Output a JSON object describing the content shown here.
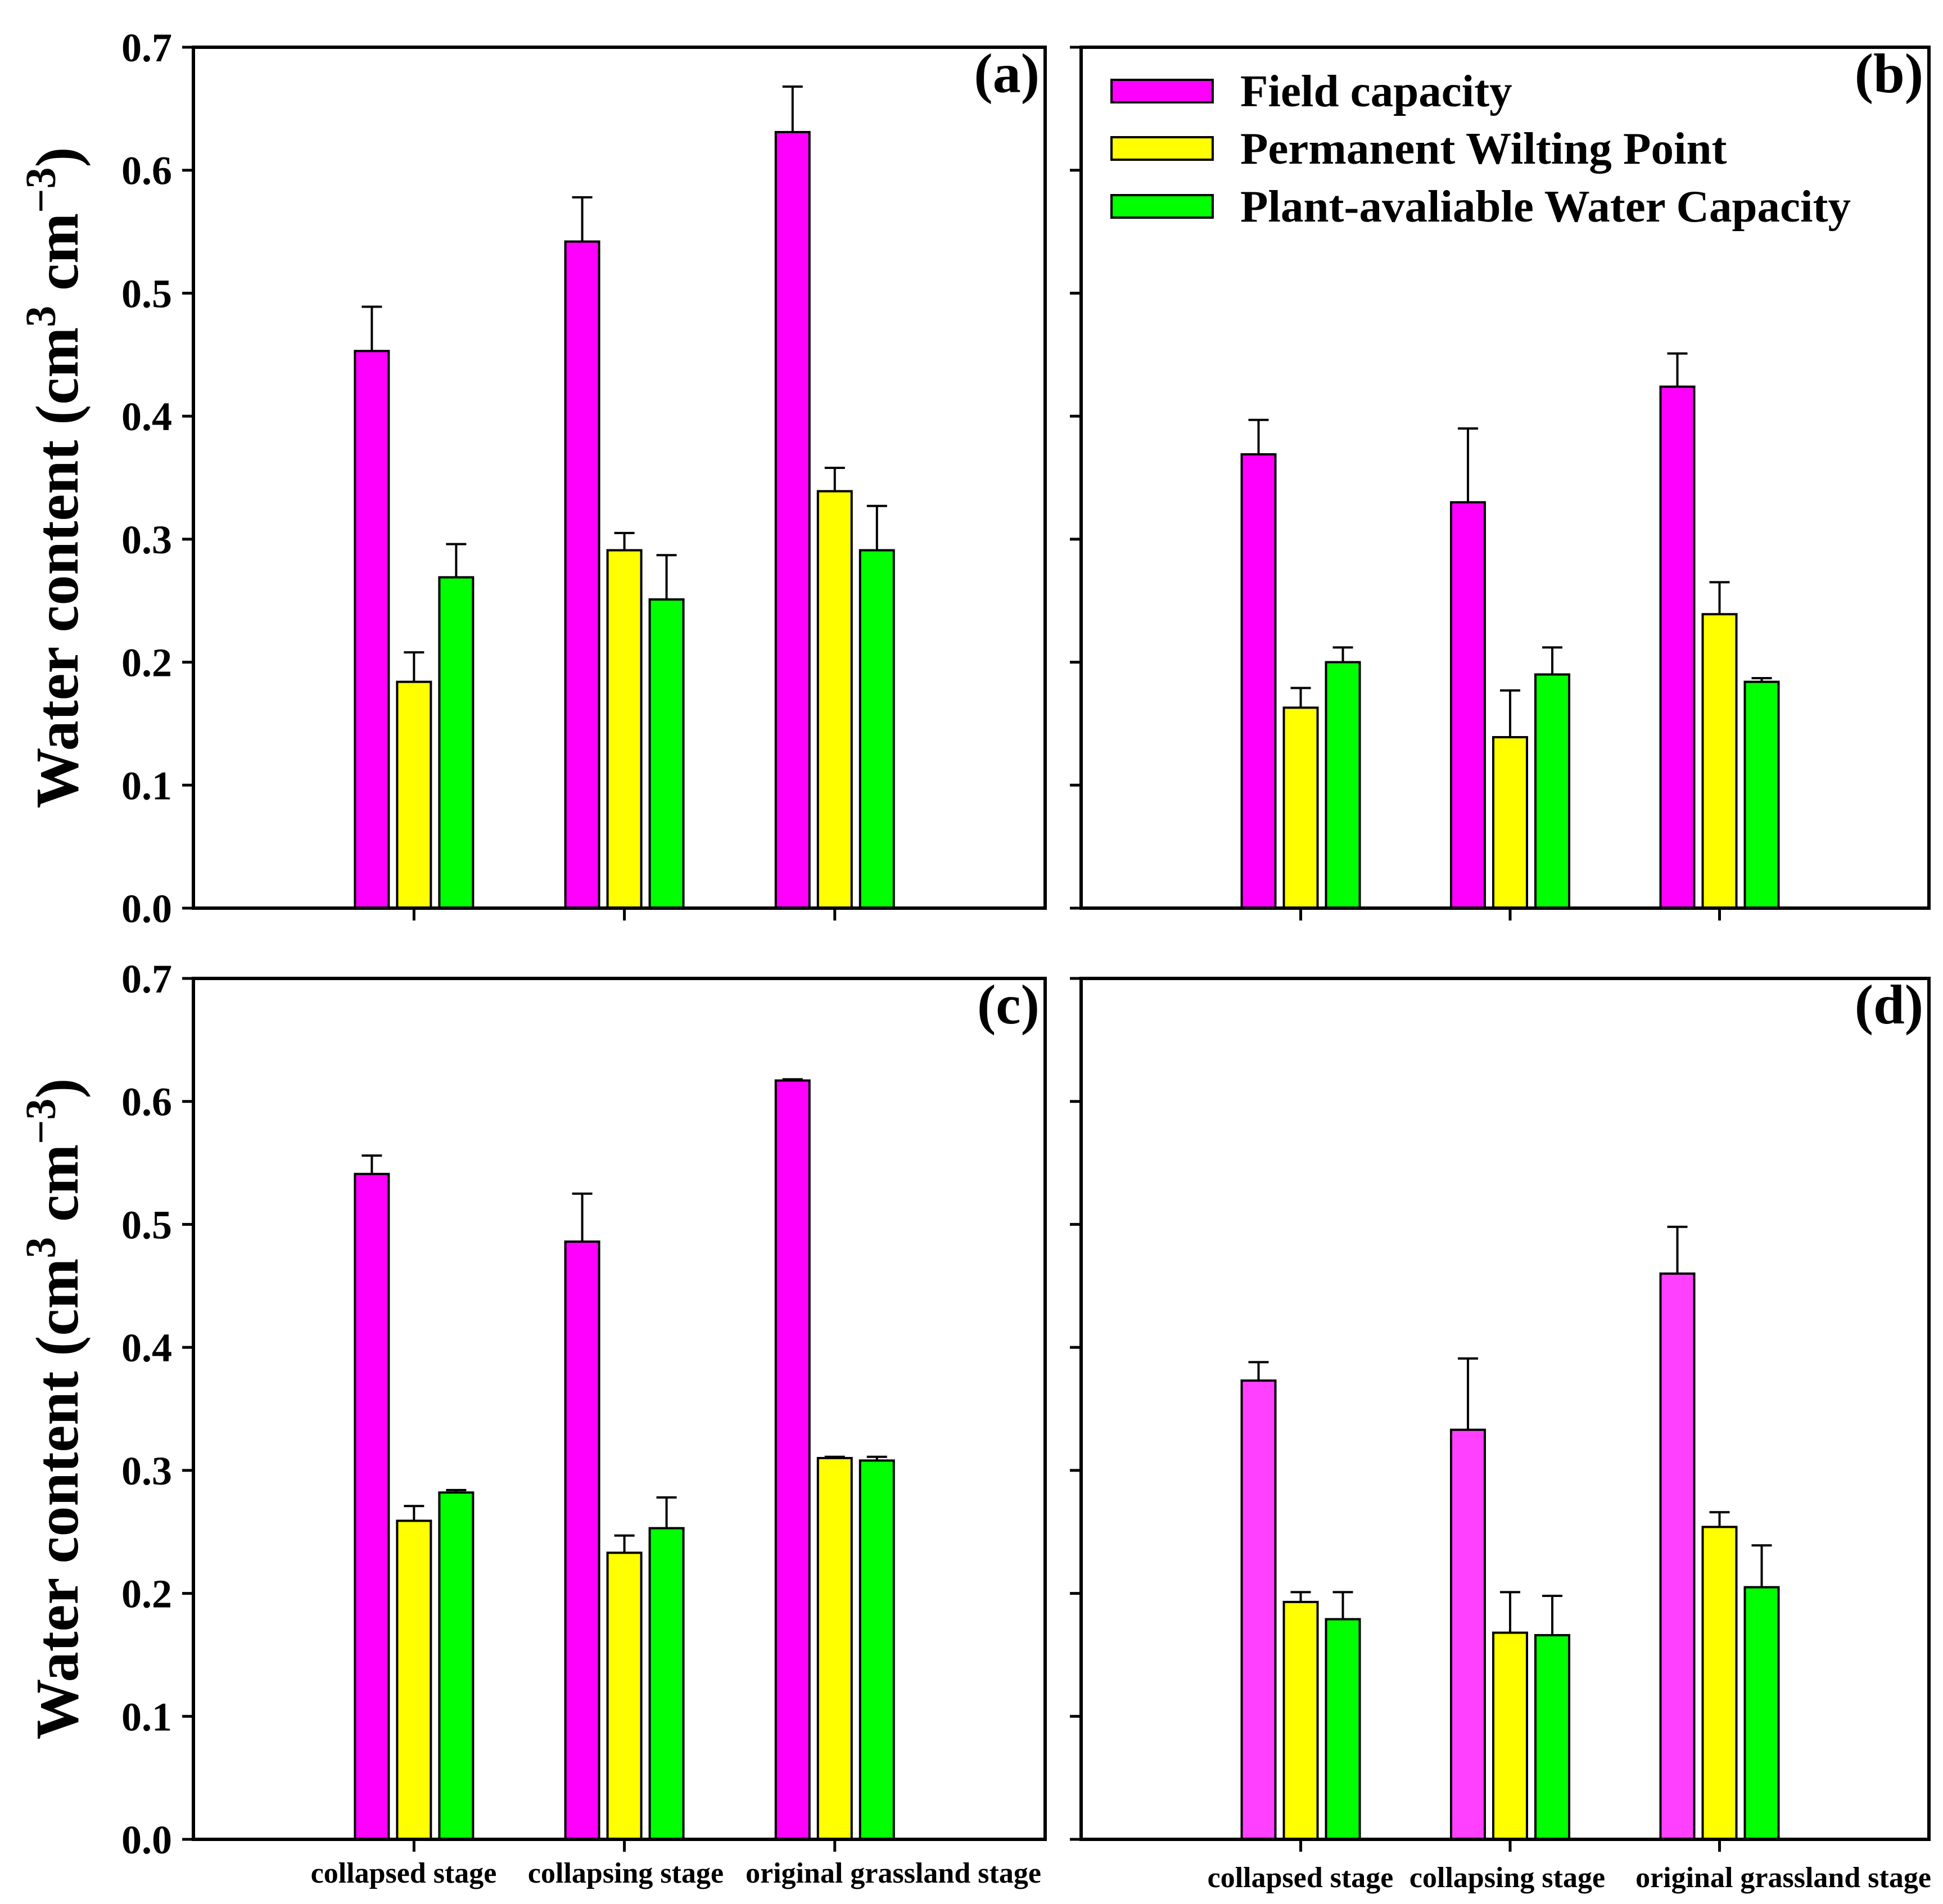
{
  "chart_data": {
    "type": "bar",
    "ylabel": [
      {
        "text": "Water content (cm"
      },
      {
        "text": "3",
        "sup": true
      },
      {
        "text": " cm"
      },
      {
        "text": "−3",
        "sup": true
      },
      {
        "text": ")"
      }
    ],
    "ylim": [
      0,
      0.7
    ],
    "yticks": [
      "0.0",
      "0.1",
      "0.2",
      "0.3",
      "0.4",
      "0.5",
      "0.6",
      "0.7"
    ],
    "categories": [
      "collapsed stage",
      "collapsing stage",
      "original grassland stage"
    ],
    "series": [
      {
        "name": "Field capacity",
        "color": "#FF00FF"
      },
      {
        "name": "Permanent Wilting Point",
        "color": "#FFFF00"
      },
      {
        "name": "Plant-avaliable Water Capacity",
        "color": "#00FF00"
      }
    ],
    "panels": [
      {
        "label": "(a)",
        "values": [
          [
            0.453,
            0.542,
            0.631
          ],
          [
            0.184,
            0.291,
            0.339
          ],
          [
            0.269,
            0.251,
            0.291
          ]
        ],
        "errors": [
          [
            0.036,
            0.036,
            0.037
          ],
          [
            0.024,
            0.014,
            0.019
          ],
          [
            0.027,
            0.036,
            0.036
          ]
        ]
      },
      {
        "label": "(b)",
        "values": [
          [
            0.369,
            0.33,
            0.424
          ],
          [
            0.163,
            0.139,
            0.239
          ],
          [
            0.2,
            0.19,
            0.184
          ]
        ],
        "errors": [
          [
            0.028,
            0.06,
            0.027
          ],
          [
            0.016,
            0.038,
            0.026
          ],
          [
            0.012,
            0.022,
            0.003
          ]
        ]
      },
      {
        "label": "(c)",
        "values": [
          [
            0.541,
            0.486,
            0.617
          ],
          [
            0.259,
            0.233,
            0.31
          ],
          [
            0.282,
            0.253,
            0.308
          ]
        ],
        "errors": [
          [
            0.015,
            0.039,
            0.001
          ],
          [
            0.012,
            0.014,
            0.001
          ],
          [
            0.002,
            0.025,
            0.003
          ]
        ]
      },
      {
        "label": "(d)",
        "values": [
          [
            0.373,
            0.333,
            0.46
          ],
          [
            0.193,
            0.168,
            0.254
          ],
          [
            0.179,
            0.166,
            0.205
          ]
        ],
        "errors": [
          [
            0.015,
            0.058,
            0.038
          ],
          [
            0.008,
            0.033,
            0.012
          ],
          [
            0.022,
            0.032,
            0.034
          ]
        ],
        "colors": [
          "#FF40FF",
          "#FFFF00",
          "#00FF00"
        ]
      }
    ]
  }
}
